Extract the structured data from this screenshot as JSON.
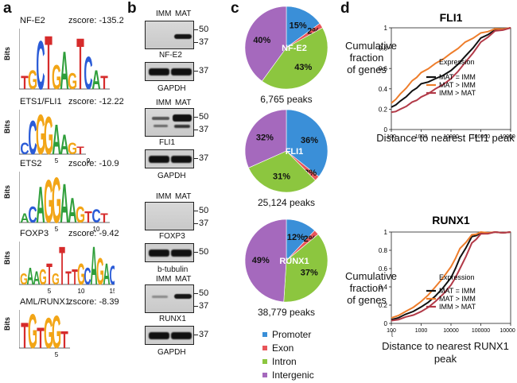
{
  "panels": {
    "a": "a",
    "b": "b",
    "c": "c",
    "d": "d"
  },
  "panel_a": {
    "bits_label": "Bits",
    "motifs": [
      {
        "name": "NF-E2",
        "zscore": "zscore: -135.2",
        "letters": "TGCTGAGTCAT"
      },
      {
        "name": "ETS1/FLI1",
        "zscore": "zscore: -12.22",
        "letters": "CCGGAAGT",
        "ticks": [
          "5",
          "9"
        ]
      },
      {
        "name": "ETS2",
        "zscore": "zscore: -10.9",
        "letters": "ACAGGAAGTCT",
        "ticks": [
          "5",
          "10",
          "14"
        ]
      },
      {
        "name": "FOXP3",
        "zscore": "zscore: -9.42",
        "letters": "GAAGTGTTTGCAGAC",
        "ticks": [
          "5",
          "10",
          "15"
        ]
      },
      {
        "name": "AML/RUNX1",
        "zscore": "zscore: -8.39",
        "letters": "TGTGGT",
        "ticks": [
          "5"
        ]
      }
    ]
  },
  "panel_b": {
    "blots": [
      {
        "target": "NF-E2",
        "loading": "GAPDH",
        "lanes": [
          "IMM",
          "MAT"
        ],
        "markers": [
          "50",
          "37"
        ],
        "loading_marker": "37"
      },
      {
        "target": "FLI1",
        "loading": "GAPDH",
        "lanes": [
          "IMM",
          "MAT"
        ],
        "markers": [
          "50",
          "37"
        ],
        "loading_marker": "37"
      },
      {
        "target": "FOXP3",
        "loading": "b-tubulin",
        "lanes": [
          "IMM",
          "MAT"
        ],
        "markers": [
          "50",
          "37"
        ],
        "loading_marker": "50"
      },
      {
        "target": "RUNX1",
        "loading": "GAPDH",
        "lanes": [
          "IMM",
          "MAT"
        ],
        "markers": [
          "50",
          "37"
        ],
        "loading_marker": "37"
      }
    ]
  },
  "panel_c": {
    "colors": {
      "Promoter": "#3a8fd8",
      "Exon": "#e8555a",
      "Intron": "#8cc63f",
      "Intergenic": "#a569bd"
    },
    "legend": [
      "Promoter",
      "Exon",
      "Intron",
      "Intergenic"
    ],
    "pies": [
      {
        "factor": "NF-E2",
        "peaks": "6,765 peaks",
        "slices": [
          {
            "category": "Promoter",
            "value": 15,
            "label": "15%"
          },
          {
            "category": "Exon",
            "value": 2,
            "label": "2%"
          },
          {
            "category": "Intron",
            "value": 43,
            "label": "43%"
          },
          {
            "category": "Intergenic",
            "value": 40,
            "label": "40%"
          }
        ]
      },
      {
        "factor": "FLI1",
        "peaks": "25,124 peaks",
        "slices": [
          {
            "category": "Promoter",
            "value": 36,
            "label": "36%"
          },
          {
            "category": "Exon",
            "value": 2,
            "label": "2%"
          },
          {
            "category": "Intron",
            "value": 31,
            "label": "31%"
          },
          {
            "category": "Intergenic",
            "value": 32,
            "label": "32%"
          }
        ]
      },
      {
        "factor": "RUNX1",
        "peaks": "38,779 peaks",
        "slices": [
          {
            "category": "Promoter",
            "value": 12,
            "label": "12%"
          },
          {
            "category": "Exon",
            "value": 2,
            "label": "2%"
          },
          {
            "category": "Intron",
            "value": 37,
            "label": "37%"
          },
          {
            "category": "Intergenic",
            "value": 49,
            "label": "49%"
          }
        ]
      }
    ]
  },
  "panel_d": {
    "ylabel": "Cumulative fraction of genes",
    "legend_title": "Expression",
    "series_names": [
      "MAT = IMM",
      "MAT > IMM",
      "IMM > MAT"
    ],
    "series_colors": [
      "#111111",
      "#ee7d2b",
      "#b23a48"
    ],
    "y_ticks": [
      "0",
      "0.2",
      "0.4",
      "0.6",
      "0.8",
      "1"
    ],
    "x_ticks": [
      "100",
      "1000",
      "10000",
      "100000",
      "1000000"
    ],
    "stray_tick": "[",
    "plots": [
      {
        "title": "FLI1",
        "xlabel": "Distance to nearest FLI1 peak",
        "series": [
          {
            "name": "MAT = IMM",
            "x": [
              100,
              200,
              500,
              1000,
              3000,
              10000,
              30000,
              100000,
              300000,
              1000000
            ],
            "y": [
              0.22,
              0.28,
              0.38,
              0.45,
              0.5,
              0.58,
              0.72,
              0.9,
              0.98,
              1.0
            ]
          },
          {
            "name": "MAT > IMM",
            "x": [
              100,
              200,
              500,
              1000,
              3000,
              10000,
              30000,
              100000,
              300000,
              1000000
            ],
            "y": [
              0.26,
              0.35,
              0.48,
              0.56,
              0.65,
              0.75,
              0.86,
              0.95,
              0.99,
              1.0
            ]
          },
          {
            "name": "IMM > MAT",
            "x": [
              100,
              200,
              500,
              1000,
              3000,
              10000,
              30000,
              100000,
              300000,
              1000000
            ],
            "y": [
              0.17,
              0.2,
              0.27,
              0.32,
              0.4,
              0.5,
              0.66,
              0.86,
              0.97,
              1.0
            ]
          }
        ]
      },
      {
        "title": "RUNX1",
        "xlabel": "Distance to nearest RUNX1 peak",
        "series": [
          {
            "name": "MAT = IMM",
            "x": [
              100,
              300,
              1000,
              3000,
              10000,
              20000,
              50000,
              100000,
              300000,
              1000000
            ],
            "y": [
              0.04,
              0.1,
              0.18,
              0.3,
              0.5,
              0.72,
              0.95,
              0.99,
              1.0,
              1.0
            ]
          },
          {
            "name": "MAT > IMM",
            "x": [
              100,
              300,
              1000,
              3000,
              10000,
              20000,
              50000,
              100000,
              300000,
              1000000
            ],
            "y": [
              0.06,
              0.13,
              0.24,
              0.4,
              0.62,
              0.82,
              0.97,
              1.0,
              1.0,
              1.0
            ]
          },
          {
            "name": "IMM > MAT",
            "x": [
              100,
              300,
              1000,
              3000,
              10000,
              20000,
              50000,
              100000,
              300000,
              1000000
            ],
            "y": [
              0.03,
              0.07,
              0.13,
              0.24,
              0.42,
              0.6,
              0.88,
              0.98,
              1.0,
              1.0
            ]
          }
        ]
      }
    ]
  },
  "chart_data": [
    {
      "type": "pie",
      "title": "NF-E2",
      "caption": "6,765 peaks",
      "categories": [
        "Promoter",
        "Exon",
        "Intron",
        "Intergenic"
      ],
      "values": [
        15,
        2,
        43,
        40
      ]
    },
    {
      "type": "pie",
      "title": "FLI1",
      "caption": "25,124 peaks",
      "categories": [
        "Promoter",
        "Exon",
        "Intron",
        "Intergenic"
      ],
      "values": [
        36,
        2,
        31,
        32
      ]
    },
    {
      "type": "pie",
      "title": "RUNX1",
      "caption": "38,779 peaks",
      "categories": [
        "Promoter",
        "Exon",
        "Intron",
        "Intergenic"
      ],
      "values": [
        12,
        2,
        37,
        49
      ]
    },
    {
      "type": "line",
      "title": "FLI1",
      "xlabel": "Distance to nearest FLI1 peak",
      "ylabel": "Cumulative fraction of genes",
      "xscale": "log",
      "xlim": [
        100,
        1000000
      ],
      "ylim": [
        0,
        1
      ],
      "series": [
        {
          "name": "MAT = IMM",
          "x": [
            100,
            200,
            500,
            1000,
            3000,
            10000,
            30000,
            100000,
            300000,
            1000000
          ],
          "y": [
            0.22,
            0.28,
            0.38,
            0.45,
            0.5,
            0.58,
            0.72,
            0.9,
            0.98,
            1.0
          ]
        },
        {
          "name": "MAT > IMM",
          "x": [
            100,
            200,
            500,
            1000,
            3000,
            10000,
            30000,
            100000,
            300000,
            1000000
          ],
          "y": [
            0.26,
            0.35,
            0.48,
            0.56,
            0.65,
            0.75,
            0.86,
            0.95,
            0.99,
            1.0
          ]
        },
        {
          "name": "IMM > MAT",
          "x": [
            100,
            200,
            500,
            1000,
            3000,
            10000,
            30000,
            100000,
            300000,
            1000000
          ],
          "y": [
            0.17,
            0.2,
            0.27,
            0.32,
            0.4,
            0.5,
            0.66,
            0.86,
            0.97,
            1.0
          ]
        }
      ]
    },
    {
      "type": "line",
      "title": "RUNX1",
      "xlabel": "Distance to nearest RUNX1 peak",
      "ylabel": "Cumulative fraction of genes",
      "xscale": "log",
      "xlim": [
        100,
        1000000
      ],
      "ylim": [
        0,
        1
      ],
      "series": [
        {
          "name": "MAT = IMM",
          "x": [
            100,
            300,
            1000,
            3000,
            10000,
            20000,
            50000,
            100000,
            300000,
            1000000
          ],
          "y": [
            0.04,
            0.1,
            0.18,
            0.3,
            0.5,
            0.72,
            0.95,
            0.99,
            1.0,
            1.0
          ]
        },
        {
          "name": "MAT > IMM",
          "x": [
            100,
            300,
            1000,
            3000,
            10000,
            20000,
            50000,
            100000,
            300000,
            1000000
          ],
          "y": [
            0.06,
            0.13,
            0.24,
            0.4,
            0.62,
            0.82,
            0.97,
            1.0,
            1.0,
            1.0
          ]
        },
        {
          "name": "IMM > MAT",
          "x": [
            100,
            300,
            1000,
            3000,
            10000,
            20000,
            50000,
            100000,
            300000,
            1000000
          ],
          "y": [
            0.03,
            0.07,
            0.13,
            0.24,
            0.42,
            0.6,
            0.88,
            0.98,
            1.0,
            1.0
          ]
        }
      ]
    }
  ]
}
